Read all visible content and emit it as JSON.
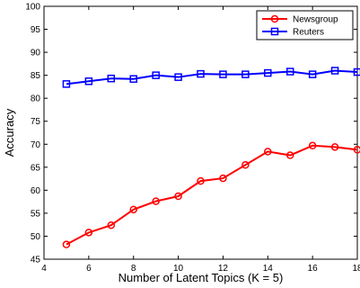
{
  "chart_data": {
    "type": "line",
    "title": "",
    "xlabel": "Number of Latent Topics (K = 5)",
    "ylabel": "Accuracy",
    "xlim": [
      4,
      18
    ],
    "ylim": [
      45,
      100
    ],
    "xticks": [
      4,
      6,
      8,
      10,
      12,
      14,
      16,
      18
    ],
    "yticks": [
      45,
      50,
      55,
      60,
      65,
      70,
      75,
      80,
      85,
      90,
      95,
      100
    ],
    "x": [
      5,
      6,
      7,
      8,
      9,
      10,
      11,
      12,
      13,
      14,
      15,
      16,
      17,
      18
    ],
    "grid": false,
    "legend_position": "top-right",
    "series": [
      {
        "name": "Newsgroup",
        "color": "#ff0000",
        "marker": "circle",
        "values": [
          48.2,
          50.8,
          52.4,
          55.8,
          57.6,
          58.7,
          62.0,
          62.6,
          65.5,
          68.4,
          67.6,
          69.7,
          69.4,
          68.8
        ]
      },
      {
        "name": "Reuters",
        "color": "#0000ff",
        "marker": "square",
        "values": [
          83.1,
          83.7,
          84.3,
          84.2,
          85.0,
          84.6,
          85.3,
          85.2,
          85.2,
          85.5,
          85.8,
          85.2,
          86.0,
          85.7
        ]
      }
    ]
  }
}
